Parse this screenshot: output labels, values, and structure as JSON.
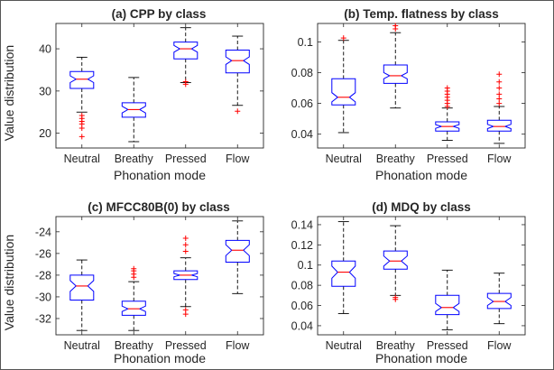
{
  "colors": {
    "box": "#0000ff",
    "median": "#ff0000",
    "outlier": "#ff0000",
    "whisker": "#000000",
    "axis": "#262626",
    "frame": "#555555"
  },
  "chart_data": [
    {
      "type": "boxplot",
      "notched": true,
      "title": "(a) CPP by class",
      "xlabel": "Phonation mode",
      "ylabel": "Value distribution",
      "categories": [
        "Neutral",
        "Breathy",
        "Pressed",
        "Flow"
      ],
      "ylim": [
        16.5,
        46
      ],
      "yticks": [
        20,
        30,
        40
      ],
      "ytick_labels": [
        "20",
        "30",
        "40"
      ],
      "grid": false,
      "boxes": [
        {
          "whislo": 25,
          "q1": 30.6,
          "med": 32.8,
          "q3": 34.6,
          "whishi": 38,
          "notch_lo": 32,
          "notch_hi": 33.6,
          "outliers": [
            19.2,
            21.2,
            22.2,
            22.8,
            23.5,
            24.2
          ]
        },
        {
          "whislo": 18,
          "q1": 23.8,
          "med": 25.6,
          "q3": 27.2,
          "whishi": 33.2,
          "notch_lo": 24.8,
          "notch_hi": 26.4,
          "outliers": []
        },
        {
          "whislo": 32,
          "q1": 37.6,
          "med": 40,
          "q3": 41.6,
          "whishi": 45,
          "notch_lo": 39.2,
          "notch_hi": 40.8,
          "outliers": [
            31.6,
            32.2
          ]
        },
        {
          "whislo": 26.6,
          "q1": 34.3,
          "med": 37.2,
          "q3": 39.7,
          "whishi": 43,
          "notch_lo": 36.3,
          "notch_hi": 38.1,
          "outliers": [
            25.2
          ]
        }
      ]
    },
    {
      "type": "boxplot",
      "notched": true,
      "title": "(b) Temp. flatness by class",
      "xlabel": "Phonation mode",
      "ylabel": "",
      "categories": [
        "Neutral",
        "Breathy",
        "Pressed",
        "Flow"
      ],
      "ylim": [
        0.031,
        0.112
      ],
      "yticks": [
        0.04,
        0.06,
        0.08,
        0.1
      ],
      "ytick_labels": [
        "0.04",
        "0.06",
        "0.08",
        "0.1"
      ],
      "grid": false,
      "boxes": [
        {
          "whislo": 0.041,
          "q1": 0.059,
          "med": 0.064,
          "q3": 0.076,
          "whishi": 0.101,
          "notch_lo": 0.061,
          "notch_hi": 0.067,
          "outliers": [
            0.1025
          ]
        },
        {
          "whislo": 0.057,
          "q1": 0.073,
          "med": 0.078,
          "q3": 0.085,
          "whishi": 0.106,
          "notch_lo": 0.076,
          "notch_hi": 0.08,
          "outliers": [
            0.1085,
            0.1105
          ]
        },
        {
          "whislo": 0.036,
          "q1": 0.042,
          "med": 0.045,
          "q3": 0.048,
          "whishi": 0.057,
          "notch_lo": 0.0438,
          "notch_hi": 0.0462,
          "outliers": [
            0.058,
            0.06,
            0.062,
            0.064,
            0.066,
            0.068,
            0.07
          ]
        },
        {
          "whislo": 0.034,
          "q1": 0.042,
          "med": 0.045,
          "q3": 0.049,
          "whishi": 0.058,
          "notch_lo": 0.0436,
          "notch_hi": 0.0464,
          "outliers": [
            0.06,
            0.063,
            0.066,
            0.07,
            0.074,
            0.079
          ]
        }
      ]
    },
    {
      "type": "boxplot",
      "notched": true,
      "title": "(c) MFCC80B(0) by class",
      "xlabel": "Phonation mode",
      "ylabel": "Value distribution",
      "categories": [
        "Neutral",
        "Breathy",
        "Pressed",
        "Flow"
      ],
      "ylim": [
        -33.5,
        -22.6
      ],
      "yticks": [
        -32,
        -30,
        -28,
        -26,
        -24
      ],
      "ytick_labels": [
        "-32",
        "-30",
        "-28",
        "-26",
        "-24"
      ],
      "grid": false,
      "boxes": [
        {
          "whislo": -33.1,
          "q1": -30.3,
          "med": -29,
          "q3": -28,
          "whishi": -26.6,
          "notch_lo": -29.5,
          "notch_hi": -28.5,
          "outliers": []
        },
        {
          "whislo": -33.1,
          "q1": -31.7,
          "med": -31.1,
          "q3": -30.4,
          "whishi": -28.6,
          "notch_lo": -31.35,
          "notch_hi": -30.85,
          "outliers": [
            -28.2,
            -27.9,
            -27.6,
            -27.4
          ]
        },
        {
          "whislo": -30.9,
          "q1": -28.4,
          "med": -28,
          "q3": -27.6,
          "whishi": -26.4,
          "notch_lo": -28.15,
          "notch_hi": -27.85,
          "outliers": [
            -31.2,
            -31.6,
            -25.8,
            -25.2,
            -24.6
          ]
        },
        {
          "whislo": -29.7,
          "q1": -26.8,
          "med": -25.7,
          "q3": -24.8,
          "whishi": -23,
          "notch_lo": -26.2,
          "notch_hi": -25.2,
          "outliers": []
        }
      ]
    },
    {
      "type": "boxplot",
      "notched": true,
      "title": "(d) MDQ by class",
      "xlabel": "Phonation mode",
      "ylabel": "",
      "categories": [
        "Neutral",
        "Breathy",
        "Pressed",
        "Flow"
      ],
      "ylim": [
        0.031,
        0.148
      ],
      "yticks": [
        0.04,
        0.06,
        0.08,
        0.1,
        0.12,
        0.14
      ],
      "ytick_labels": [
        "0.04",
        "0.06",
        "0.08",
        "0.1",
        "0.12",
        "0.14"
      ],
      "grid": false,
      "boxes": [
        {
          "whislo": 0.052,
          "q1": 0.079,
          "med": 0.093,
          "q3": 0.104,
          "whishi": 0.143,
          "notch_lo": 0.087,
          "notch_hi": 0.099,
          "outliers": []
        },
        {
          "whislo": 0.07,
          "q1": 0.096,
          "med": 0.104,
          "q3": 0.114,
          "whishi": 0.139,
          "notch_lo": 0.099,
          "notch_hi": 0.109,
          "outliers": [
            0.066,
            0.068
          ]
        },
        {
          "whislo": 0.036,
          "q1": 0.051,
          "med": 0.058,
          "q3": 0.07,
          "whishi": 0.095,
          "notch_lo": 0.054,
          "notch_hi": 0.062,
          "outliers": []
        },
        {
          "whislo": 0.042,
          "q1": 0.057,
          "med": 0.064,
          "q3": 0.072,
          "whishi": 0.092,
          "notch_lo": 0.06,
          "notch_hi": 0.068,
          "outliers": []
        }
      ]
    }
  ]
}
